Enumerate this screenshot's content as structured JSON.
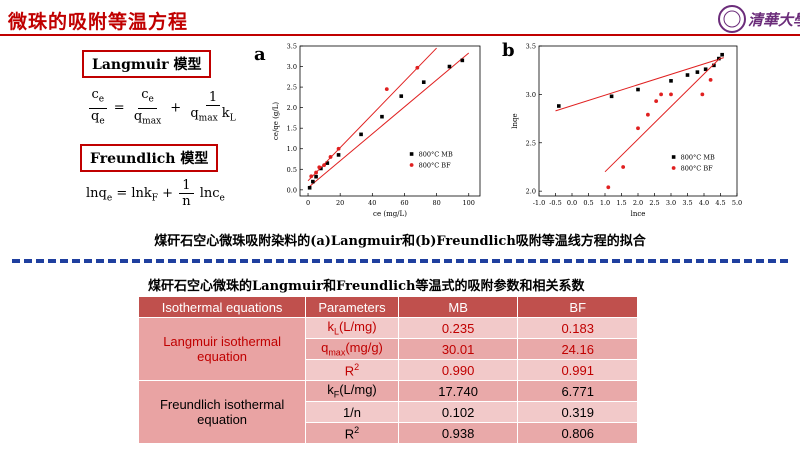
{
  "title": "微珠的吸附等温方程",
  "logo_text": "清華大學",
  "langmuir": {
    "label": "Langmuir 模型",
    "eq_lhs_num": "c",
    "eq_lhs_num_sub": "e",
    "eq_lhs_den": "q",
    "eq_lhs_den_sub": "e",
    "eq_t1_num": "c",
    "eq_t1_num_sub": "e",
    "eq_t1_den": "q",
    "eq_t1_den_sub": "max",
    "eq_t2_num": "1",
    "eq_t2_den": "q",
    "eq_t2_den_sub": "max",
    "eq_t2_den_b": "k",
    "eq_t2_den_b_sub": "L"
  },
  "freundlich": {
    "label": "Freundlich 模型",
    "eq_a": "lnq",
    "eq_a_sub": "e",
    "eq_b": "= lnk",
    "eq_b_sub": "F",
    "eq_c": "+",
    "eq_frac_num": "1",
    "eq_frac_den": "n",
    "eq_d": "lnc",
    "eq_d_sub": "e"
  },
  "caption": "煤矸石空心微珠吸附染料的(a)Langmuir和(b)Freundlich吸附等温线方程的拟合",
  "table_title": "煤矸石空心微珠的Langmuir和Freundlich等温式的吸附参数和相关系数",
  "table": {
    "headers": [
      "Isothermal equations",
      "Parameters",
      "MB",
      "BF"
    ],
    "groups": [
      {
        "name": "Langmuir isothermal equation",
        "rows": [
          {
            "param": "kL(L/mg)",
            "p_main": "k",
            "p_sub": "L",
            "p_rest": "(L/mg)",
            "mb": "0.235",
            "bf": "0.183"
          },
          {
            "param": "qmax(mg/g)",
            "p_main": "q",
            "p_sub": "max",
            "p_rest": "(mg/g)",
            "mb": "30.01",
            "bf": "24.16"
          },
          {
            "param": "R2",
            "p_main": "R",
            "p_sup": "2",
            "mb": "0.990",
            "bf": "0.991"
          }
        ]
      },
      {
        "name": "Freundlich isothermal equation",
        "rows": [
          {
            "param": "kF(L/mg)",
            "p_main": "k",
            "p_sub": "F",
            "p_rest": "(L/mg)",
            "mb": "17.740",
            "bf": "6.771"
          },
          {
            "param": "1/n",
            "p_main": "1/n",
            "mb": "0.102",
            "bf": "0.319"
          },
          {
            "param": "R2",
            "p_main": "R",
            "p_sup": "2",
            "mb": "0.938",
            "bf": "0.806"
          }
        ]
      }
    ]
  },
  "chart_data": [
    {
      "panel": "a",
      "type": "scatter",
      "xlabel": "ce (mg/L)",
      "ylabel": "ce/qe (g/L)",
      "xlim": [
        -5,
        107
      ],
      "ylim": [
        -0.15,
        3.5
      ],
      "xticks": [
        0,
        20,
        40,
        60,
        80,
        100
      ],
      "yticks": [
        0.0,
        0.5,
        1.0,
        1.5,
        2.0,
        2.5,
        3.0,
        3.5
      ],
      "legend_position": "bottom-right",
      "series": [
        {
          "name": "800°C MB",
          "marker": "square",
          "color": "#000000",
          "x": [
            1,
            3,
            5,
            8,
            12,
            19,
            33,
            46,
            58,
            72,
            88,
            96
          ],
          "y": [
            0.05,
            0.2,
            0.32,
            0.52,
            0.65,
            0.85,
            1.35,
            1.78,
            2.28,
            2.62,
            3.0,
            3.15
          ],
          "fit": [
            [
              0,
              0.05
            ],
            [
              100,
              3.33
            ]
          ]
        },
        {
          "name": "800°C BF",
          "marker": "circle",
          "color": "#e02020",
          "x": [
            2,
            5,
            7,
            10,
            14,
            19,
            49,
            68
          ],
          "y": [
            0.33,
            0.42,
            0.55,
            0.6,
            0.8,
            1.0,
            2.45,
            2.97
          ],
          "fit": [
            [
              0,
              0.22
            ],
            [
              80,
              3.45
            ]
          ]
        }
      ]
    },
    {
      "panel": "b",
      "type": "scatter",
      "xlabel": "lnce",
      "ylabel": "lnqe",
      "xlim": [
        -1.0,
        5.0
      ],
      "ylim": [
        1.95,
        3.5
      ],
      "xticks": [
        -1.0,
        -0.5,
        0.0,
        0.5,
        1.0,
        1.5,
        2.0,
        2.5,
        3.0,
        3.5,
        4.0,
        4.5,
        5.0
      ],
      "yticks": [
        2.0,
        2.5,
        3.0,
        3.5
      ],
      "legend_position": "bottom-right",
      "series": [
        {
          "name": "800°C MB",
          "marker": "square",
          "color": "#000000",
          "x": [
            -0.4,
            1.2,
            2.0,
            3.0,
            3.5,
            3.8,
            4.05,
            4.3,
            4.45,
            4.55
          ],
          "y": [
            2.88,
            2.98,
            3.05,
            3.14,
            3.2,
            3.23,
            3.26,
            3.3,
            3.37,
            3.41
          ],
          "fit": [
            [
              -0.5,
              2.83
            ],
            [
              4.6,
              3.38
            ]
          ]
        },
        {
          "name": "800°C BF",
          "marker": "circle",
          "color": "#e02020",
          "x": [
            1.1,
            1.55,
            2.0,
            2.3,
            2.55,
            2.7,
            3.0,
            3.95,
            4.2
          ],
          "y": [
            2.04,
            2.25,
            2.65,
            2.79,
            2.93,
            3.0,
            3.0,
            3.0,
            3.15
          ],
          "fit": [
            [
              1.0,
              2.2
            ],
            [
              4.5,
              3.38
            ]
          ]
        }
      ]
    }
  ]
}
